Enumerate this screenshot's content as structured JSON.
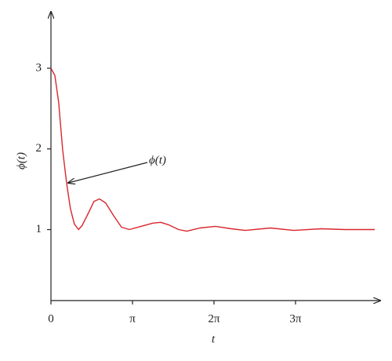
{
  "chart_data": {
    "type": "line",
    "xlabel": "t",
    "ylabel": "ϕ(t)",
    "annotation": "ϕ(t)",
    "x": [
      0,
      0.15,
      0.3,
      0.45,
      0.6,
      0.75,
      0.9,
      1.06,
      1.2,
      1.42,
      1.66,
      1.87,
      2.11,
      2.42,
      2.72,
      3.02,
      3.47,
      3.93,
      4.23,
      4.53,
      4.92,
      5.23,
      5.74,
      6.34,
      6.95,
      7.49,
      8.46,
      9.36,
      10.42,
      11.33,
      12.48
    ],
    "series": [
      {
        "color": "#d9262c",
        "values": [
          3.0,
          2.91,
          2.57,
          1.99,
          1.58,
          1.26,
          1.07,
          1.0,
          1.05,
          1.19,
          1.35,
          1.38,
          1.33,
          1.17,
          1.03,
          1.0,
          1.04,
          1.08,
          1.09,
          1.06,
          1.0,
          0.98,
          1.02,
          1.04,
          1.01,
          0.99,
          1.02,
          0.99,
          1.01,
          1.0,
          1.0
        ]
      }
    ],
    "xlim": [
      0,
      12.69
    ],
    "ylim": [
      0.12,
      3.7
    ],
    "xticks": [
      0,
      {
        "value": 3.14159,
        "label": "π"
      },
      {
        "value": 6.28319,
        "label": "2π"
      },
      {
        "value": 9.42478,
        "label": "3π"
      }
    ],
    "yticks": [
      1,
      2,
      3
    ]
  }
}
